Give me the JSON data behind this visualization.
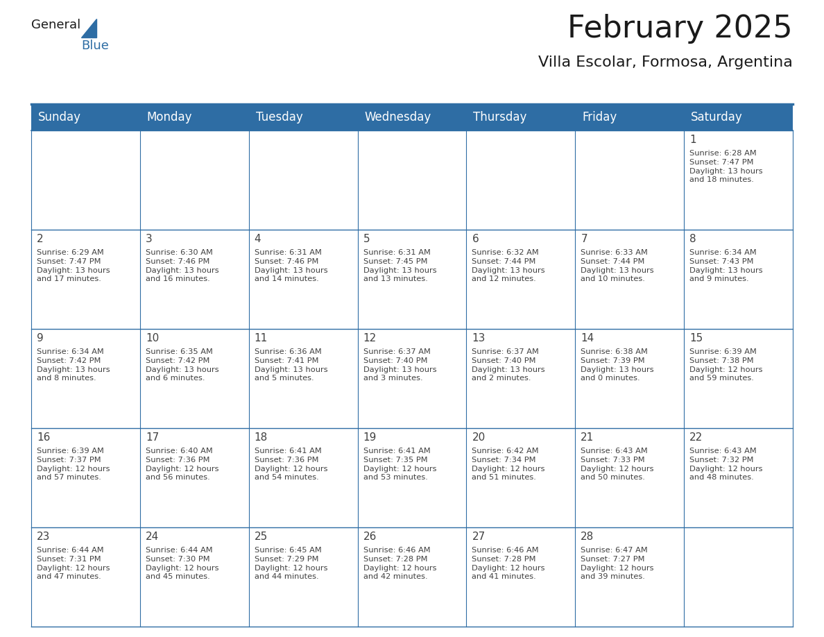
{
  "title": "February 2025",
  "subtitle": "Villa Escolar, Formosa, Argentina",
  "header_bg": "#2E6DA4",
  "header_text": "#FFFFFF",
  "cell_bg": "#FFFFFF",
  "line_color": "#2E6DA4",
  "text_color": "#404040",
  "day_num_color": "#2E6DA4",
  "day_headers": [
    "Sunday",
    "Monday",
    "Tuesday",
    "Wednesday",
    "Thursday",
    "Friday",
    "Saturday"
  ],
  "calendar_data": [
    [
      null,
      null,
      null,
      null,
      null,
      null,
      {
        "day": 1,
        "sunrise": "6:28 AM",
        "sunset": "7:47 PM",
        "daylight": "13 hours\nand 18 minutes."
      }
    ],
    [
      {
        "day": 2,
        "sunrise": "6:29 AM",
        "sunset": "7:47 PM",
        "daylight": "13 hours\nand 17 minutes."
      },
      {
        "day": 3,
        "sunrise": "6:30 AM",
        "sunset": "7:46 PM",
        "daylight": "13 hours\nand 16 minutes."
      },
      {
        "day": 4,
        "sunrise": "6:31 AM",
        "sunset": "7:46 PM",
        "daylight": "13 hours\nand 14 minutes."
      },
      {
        "day": 5,
        "sunrise": "6:31 AM",
        "sunset": "7:45 PM",
        "daylight": "13 hours\nand 13 minutes."
      },
      {
        "day": 6,
        "sunrise": "6:32 AM",
        "sunset": "7:44 PM",
        "daylight": "13 hours\nand 12 minutes."
      },
      {
        "day": 7,
        "sunrise": "6:33 AM",
        "sunset": "7:44 PM",
        "daylight": "13 hours\nand 10 minutes."
      },
      {
        "day": 8,
        "sunrise": "6:34 AM",
        "sunset": "7:43 PM",
        "daylight": "13 hours\nand 9 minutes."
      }
    ],
    [
      {
        "day": 9,
        "sunrise": "6:34 AM",
        "sunset": "7:42 PM",
        "daylight": "13 hours\nand 8 minutes."
      },
      {
        "day": 10,
        "sunrise": "6:35 AM",
        "sunset": "7:42 PM",
        "daylight": "13 hours\nand 6 minutes."
      },
      {
        "day": 11,
        "sunrise": "6:36 AM",
        "sunset": "7:41 PM",
        "daylight": "13 hours\nand 5 minutes."
      },
      {
        "day": 12,
        "sunrise": "6:37 AM",
        "sunset": "7:40 PM",
        "daylight": "13 hours\nand 3 minutes."
      },
      {
        "day": 13,
        "sunrise": "6:37 AM",
        "sunset": "7:40 PM",
        "daylight": "13 hours\nand 2 minutes."
      },
      {
        "day": 14,
        "sunrise": "6:38 AM",
        "sunset": "7:39 PM",
        "daylight": "13 hours\nand 0 minutes."
      },
      {
        "day": 15,
        "sunrise": "6:39 AM",
        "sunset": "7:38 PM",
        "daylight": "12 hours\nand 59 minutes."
      }
    ],
    [
      {
        "day": 16,
        "sunrise": "6:39 AM",
        "sunset": "7:37 PM",
        "daylight": "12 hours\nand 57 minutes."
      },
      {
        "day": 17,
        "sunrise": "6:40 AM",
        "sunset": "7:36 PM",
        "daylight": "12 hours\nand 56 minutes."
      },
      {
        "day": 18,
        "sunrise": "6:41 AM",
        "sunset": "7:36 PM",
        "daylight": "12 hours\nand 54 minutes."
      },
      {
        "day": 19,
        "sunrise": "6:41 AM",
        "sunset": "7:35 PM",
        "daylight": "12 hours\nand 53 minutes."
      },
      {
        "day": 20,
        "sunrise": "6:42 AM",
        "sunset": "7:34 PM",
        "daylight": "12 hours\nand 51 minutes."
      },
      {
        "day": 21,
        "sunrise": "6:43 AM",
        "sunset": "7:33 PM",
        "daylight": "12 hours\nand 50 minutes."
      },
      {
        "day": 22,
        "sunrise": "6:43 AM",
        "sunset": "7:32 PM",
        "daylight": "12 hours\nand 48 minutes."
      }
    ],
    [
      {
        "day": 23,
        "sunrise": "6:44 AM",
        "sunset": "7:31 PM",
        "daylight": "12 hours\nand 47 minutes."
      },
      {
        "day": 24,
        "sunrise": "6:44 AM",
        "sunset": "7:30 PM",
        "daylight": "12 hours\nand 45 minutes."
      },
      {
        "day": 25,
        "sunrise": "6:45 AM",
        "sunset": "7:29 PM",
        "daylight": "12 hours\nand 44 minutes."
      },
      {
        "day": 26,
        "sunrise": "6:46 AM",
        "sunset": "7:28 PM",
        "daylight": "12 hours\nand 42 minutes."
      },
      {
        "day": 27,
        "sunrise": "6:46 AM",
        "sunset": "7:28 PM",
        "daylight": "12 hours\nand 41 minutes."
      },
      {
        "day": 28,
        "sunrise": "6:47 AM",
        "sunset": "7:27 PM",
        "daylight": "12 hours\nand 39 minutes."
      },
      null
    ]
  ],
  "title_fontsize": 32,
  "subtitle_fontsize": 16,
  "header_fontsize": 12,
  "day_num_fontsize": 11,
  "cell_text_fontsize": 8.2,
  "fig_width": 11.88,
  "fig_height": 9.18
}
